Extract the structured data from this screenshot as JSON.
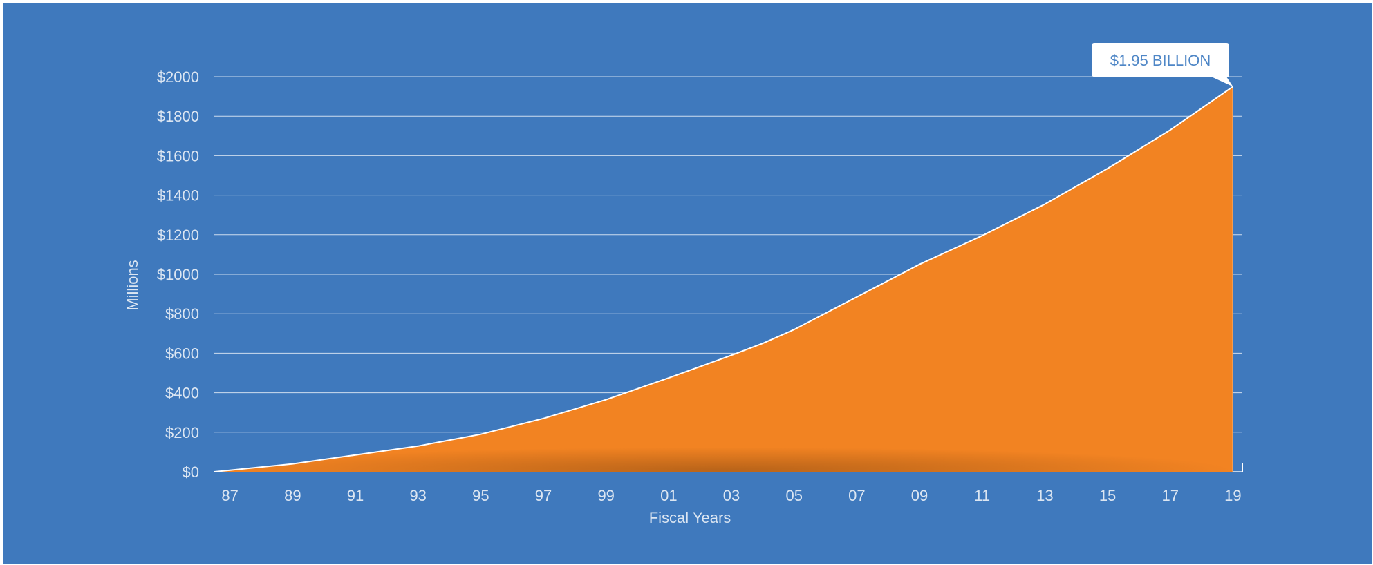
{
  "colors": {
    "background": "#3f79bd",
    "area": "#f28322",
    "line": "#ffffff",
    "grid": "#ffffff",
    "text": "#dce6f2",
    "callout_text": "#4e86c6"
  },
  "chart_data": {
    "type": "area",
    "xlabel": "Fiscal Years",
    "ylabel": "Millions",
    "ylim": [
      0,
      2000
    ],
    "grid": true,
    "yticks": [
      0,
      200,
      400,
      600,
      800,
      1000,
      1200,
      1400,
      1600,
      1800,
      2000
    ],
    "ytick_labels": [
      "$0",
      "$200",
      "$400",
      "$600",
      "$800",
      "$1000",
      "$1200",
      "$1400",
      "$1600",
      "$1800",
      "$2000"
    ],
    "xlim": [
      1986.5,
      2019.3
    ],
    "xticks": [
      1987,
      1989,
      1991,
      1993,
      1995,
      1997,
      1999,
      2001,
      2003,
      2005,
      2007,
      2009,
      2011,
      2013,
      2015,
      2017,
      2019
    ],
    "xtick_labels": [
      "87",
      "89",
      "91",
      "93",
      "95",
      "97",
      "99",
      "01",
      "03",
      "05",
      "07",
      "09",
      "11",
      "13",
      "15",
      "17",
      "19"
    ],
    "series": [
      {
        "x": [
          1986.5,
          1987,
          1989,
          1991,
          1993,
          1995,
          1997,
          1999,
          2001,
          2003,
          2004,
          2005,
          2007,
          2009,
          2011,
          2013,
          2015,
          2017,
          2019
        ],
        "values": [
          0,
          8,
          40,
          85,
          130,
          190,
          270,
          365,
          475,
          590,
          650,
          720,
          885,
          1050,
          1195,
          1355,
          1535,
          1730,
          1950
        ]
      }
    ],
    "annotation": "$1.95 BILLION"
  }
}
